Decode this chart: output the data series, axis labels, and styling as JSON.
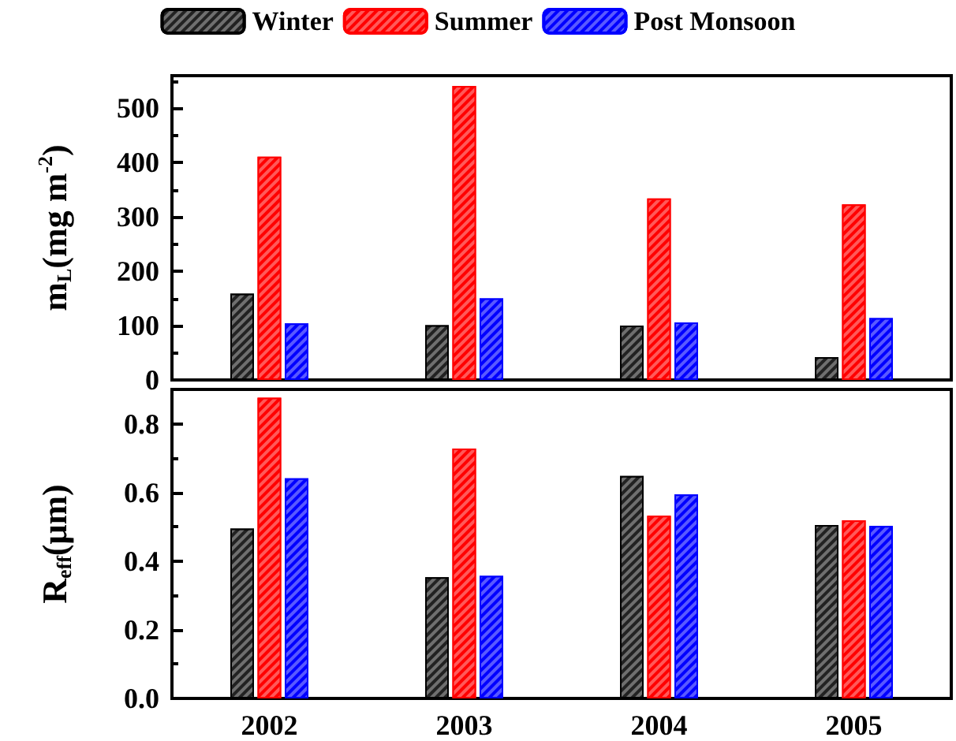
{
  "chart_data": [
    {
      "type": "bar",
      "categories": [
        "2002",
        "2003",
        "2004",
        "2005"
      ],
      "ylabel": "m$_{L}$(mg m$^{-2}$)",
      "ylim": [
        0,
        560
      ],
      "yticks": [
        0,
        100,
        200,
        300,
        400,
        500
      ],
      "legend": "top",
      "tick_labels": "y",
      "series": [
        {
          "name": "Winter",
          "color": "#222222",
          "values": [
            159,
            101,
            100,
            42
          ]
        },
        {
          "name": "Summer",
          "color": "#ff0000",
          "values": [
            411,
            541,
            334,
            323
          ]
        },
        {
          "name": "Post Monsoon",
          "color": "#0000ff",
          "values": [
            104,
            150,
            106,
            114
          ]
        }
      ]
    },
    {
      "type": "bar",
      "categories": [
        "2002",
        "2003",
        "2004",
        "2005"
      ],
      "ylabel": "R$_{eff}$(μm)",
      "ylim": [
        0,
        0.9
      ],
      "yticks": [
        {
          "value": 0,
          "label": "0.0"
        },
        0.2,
        0.4,
        0.6,
        0.8
      ],
      "series": [
        {
          "color": "#222222",
          "values": [
            0.495,
            0.353,
            0.648,
            0.505
          ]
        },
        {
          "color": "#ff0000",
          "values": [
            0.876,
            0.728,
            0.532,
            0.519
          ]
        },
        {
          "color": "#0000ff",
          "values": [
            0.641,
            0.357,
            0.594,
            0.502
          ]
        }
      ]
    }
  ]
}
